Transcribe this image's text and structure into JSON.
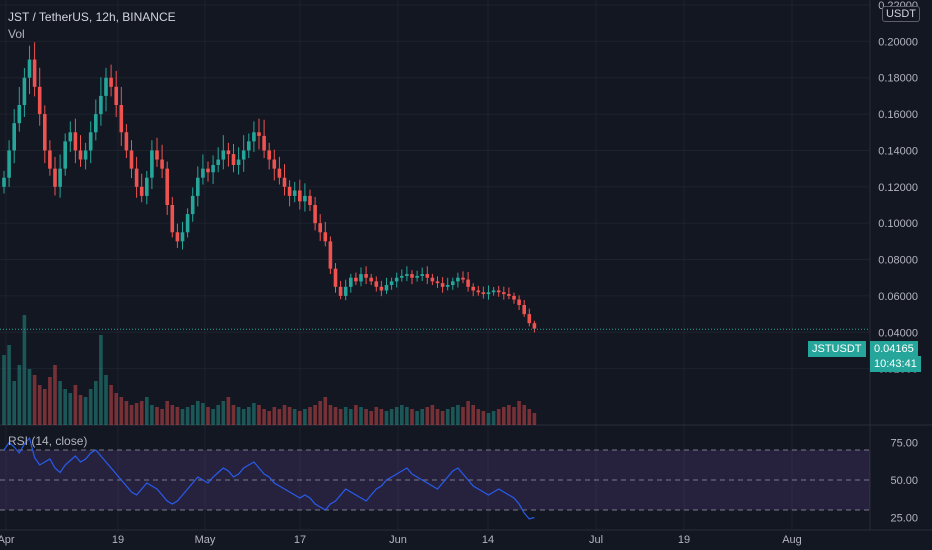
{
  "header": {
    "title": "JST / TetherUS, 12h, BINANCE",
    "volume_label": "Vol",
    "rsi_label": "RSI (14, close)"
  },
  "badges": {
    "currency": "USDT",
    "symbol": "JSTUSDT",
    "last_price": "0.04165",
    "countdown": "10:43:41"
  },
  "colors": {
    "background": "#131722",
    "up": "#26a69a",
    "down": "#ef5350",
    "rsi_line": "#2962ff",
    "rsi_band": "#7e57c2"
  },
  "chart_data": [
    {
      "type": "candlestick",
      "title": "JST / TetherUS, 12h, BINANCE",
      "y_ticks": [
        "0.02000",
        "0.04000",
        "0.06000",
        "0.08000",
        "0.10000",
        "0.12000",
        "0.14000",
        "0.16000",
        "0.18000",
        "0.20000",
        "0.22000"
      ],
      "x_ticks": [
        "Apr",
        "19",
        "May",
        "17",
        "Jun",
        "14",
        "Jul",
        "19",
        "Aug"
      ],
      "ylim": [
        0,
        0.22
      ],
      "last_price": 0.04165,
      "close_series": [
        0.125,
        0.14,
        0.155,
        0.165,
        0.18,
        0.19,
        0.175,
        0.16,
        0.14,
        0.13,
        0.12,
        0.13,
        0.145,
        0.15,
        0.14,
        0.135,
        0.14,
        0.15,
        0.16,
        0.17,
        0.18,
        0.175,
        0.165,
        0.15,
        0.14,
        0.13,
        0.12,
        0.115,
        0.125,
        0.14,
        0.135,
        0.13,
        0.11,
        0.095,
        0.09,
        0.095,
        0.105,
        0.115,
        0.125,
        0.13,
        0.128,
        0.132,
        0.135,
        0.14,
        0.138,
        0.132,
        0.135,
        0.14,
        0.145,
        0.15,
        0.148,
        0.14,
        0.135,
        0.13,
        0.125,
        0.12,
        0.115,
        0.118,
        0.112,
        0.115,
        0.11,
        0.1,
        0.095,
        0.09,
        0.075,
        0.065,
        0.06,
        0.065,
        0.07,
        0.068,
        0.072,
        0.07,
        0.068,
        0.065,
        0.063,
        0.066,
        0.068,
        0.07,
        0.071,
        0.072,
        0.07,
        0.071,
        0.072,
        0.07,
        0.068,
        0.067,
        0.065,
        0.066,
        0.068,
        0.07,
        0.069,
        0.065,
        0.063,
        0.062,
        0.061,
        0.062,
        0.063,
        0.062,
        0.061,
        0.06,
        0.058,
        0.055,
        0.05,
        0.045,
        0.042
      ],
      "volume_series": [
        35,
        40,
        22,
        30,
        55,
        28,
        25,
        20,
        18,
        24,
        30,
        22,
        18,
        16,
        20,
        15,
        14,
        18,
        22,
        45,
        25,
        20,
        16,
        14,
        12,
        10,
        11,
        12,
        14,
        10,
        9,
        8,
        12,
        10,
        9,
        8,
        9,
        10,
        12,
        11,
        9,
        8,
        10,
        12,
        14,
        10,
        9,
        8,
        9,
        11,
        10,
        8,
        7,
        9,
        8,
        10,
        9,
        8,
        7,
        8,
        9,
        10,
        12,
        14,
        10,
        9,
        8,
        9,
        8,
        10,
        9,
        8,
        7,
        9,
        8,
        7,
        8,
        9,
        10,
        9,
        8,
        7,
        8,
        9,
        10,
        8,
        7,
        8,
        9,
        10,
        9,
        12,
        10,
        8,
        7,
        6,
        7,
        8,
        9,
        10,
        9,
        12,
        10,
        8,
        6
      ]
    },
    {
      "type": "line",
      "title": "RSI (14, close)",
      "y_ticks": [
        "75.00",
        "50.00",
        "25.00"
      ],
      "ylim": [
        20,
        80
      ],
      "bands": [
        30,
        50,
        70
      ],
      "values": [
        70,
        75,
        72,
        68,
        74,
        78,
        65,
        60,
        62,
        64,
        58,
        55,
        60,
        63,
        66,
        62,
        64,
        68,
        70,
        66,
        62,
        58,
        54,
        50,
        46,
        42,
        40,
        44,
        48,
        46,
        44,
        40,
        36,
        34,
        36,
        40,
        44,
        48,
        52,
        50,
        48,
        52,
        55,
        58,
        56,
        52,
        54,
        58,
        60,
        62,
        58,
        54,
        52,
        48,
        46,
        44,
        42,
        40,
        38,
        40,
        38,
        34,
        32,
        30,
        34,
        36,
        40,
        44,
        42,
        40,
        38,
        36,
        40,
        44,
        46,
        50,
        52,
        54,
        56,
        58,
        54,
        52,
        50,
        48,
        46,
        44,
        48,
        52,
        56,
        58,
        54,
        50,
        46,
        44,
        42,
        40,
        42,
        44,
        42,
        40,
        38,
        34,
        28,
        24,
        25
      ]
    }
  ]
}
